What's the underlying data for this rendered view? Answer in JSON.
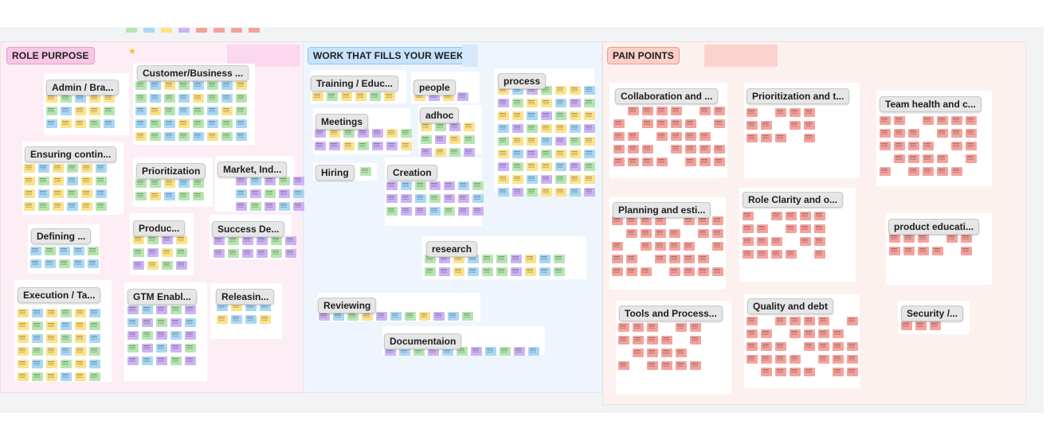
{
  "board": {
    "background": "#f2f3f5",
    "sections": [
      {
        "id": "role-purpose",
        "title": "ROLE PURPOSE",
        "bg": "#fdeef6",
        "title_bg": "#f7c6e4"
      },
      {
        "id": "work",
        "title": "WORK THAT FILLS YOUR WEEK",
        "bg": "#eef5fd",
        "title_bg": "#c7e2fb"
      },
      {
        "id": "pain",
        "title": "PAIN POINTS",
        "bg": "#fdf1ef",
        "title_bg": "#fbcfc8"
      }
    ],
    "labels": [
      "Admin / Bra...",
      "Customer/Business ...",
      "Ensuring contin...",
      "Prioritization",
      "Market, Ind...",
      "Defining ...",
      "Produc...",
      "Success De...",
      "Execution / Ta...",
      "GTM Enabl...",
      "Releasin...",
      "Training / Educ...",
      "people",
      "process",
      "Meetings",
      "adhoc",
      "Hiring",
      "Creation",
      "research",
      "Reviewing",
      "Documentaion",
      "Collaboration and ...",
      "Prioritization and t...",
      "Team health and c...",
      "Planning and esti...",
      "Role Clarity and o...",
      "product educati...",
      "Tools and Process...",
      "Quality and debt",
      "Security /..."
    ]
  },
  "colors": {
    "yellow": "#fde28a",
    "green": "#b6e6b0",
    "blue": "#a9d8f6",
    "purple": "#cdb3f5",
    "pink": "#f7b0d9",
    "salmon": "#f5a29c"
  }
}
